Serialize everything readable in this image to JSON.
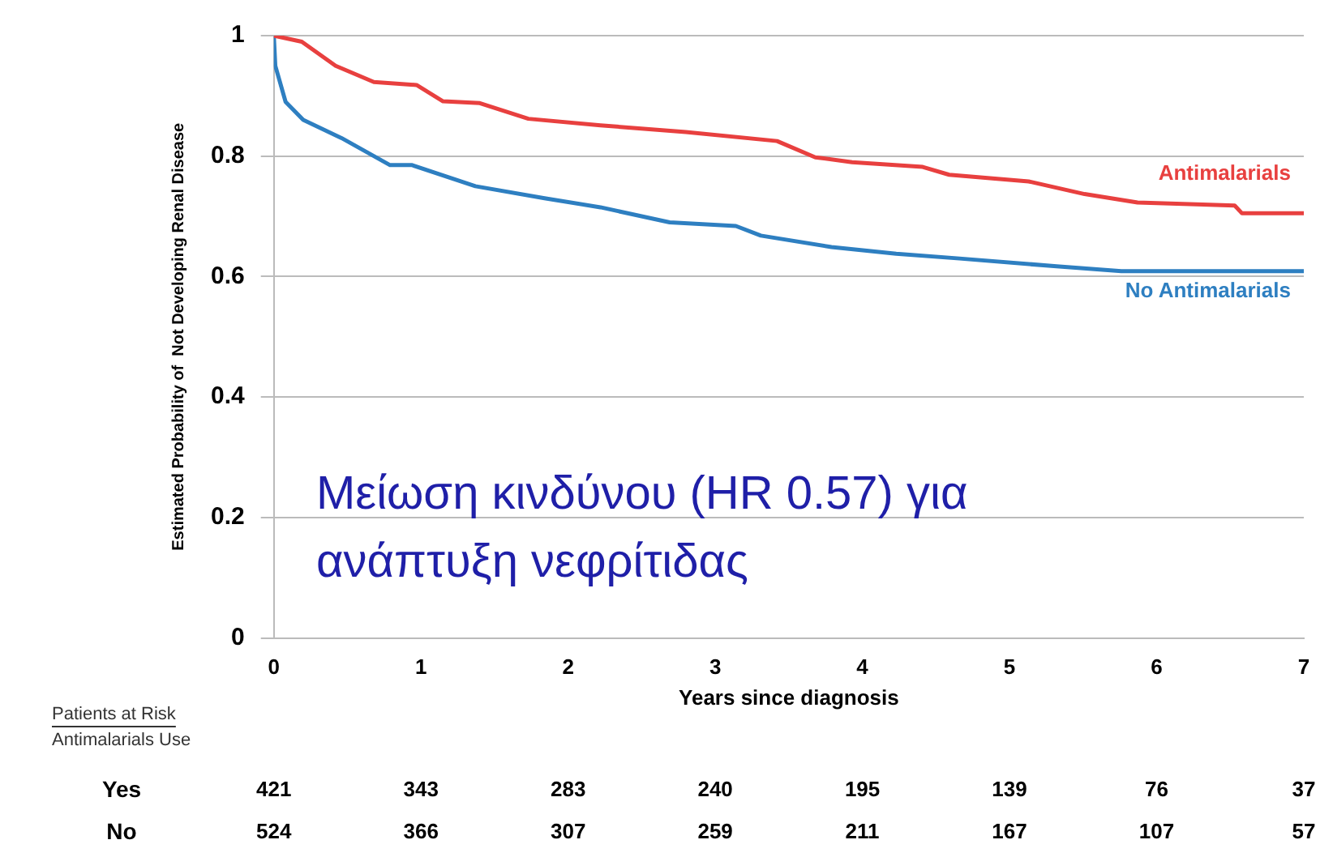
{
  "chart_data": {
    "type": "line",
    "xlabel": "Years since diagnosis",
    "ylabel": "Estimated Probability of  Not Developing Renal Disease",
    "xlim": [
      0,
      7
    ],
    "xticks": [
      0,
      1,
      2,
      3,
      4,
      5,
      6,
      7
    ],
    "ylim": [
      0,
      1
    ],
    "yticks": [
      0,
      0.2,
      0.4,
      0.6,
      0.8,
      1
    ],
    "grid": "y",
    "legend": false,
    "marker": "none",
    "series": [
      {
        "name": "Antimalarials",
        "color": "#e8403f",
        "x": [
          0,
          0.19,
          0.42,
          0.68,
          0.97,
          1.15,
          1.4,
          1.73,
          2.22,
          2.8,
          3.42,
          3.68,
          3.93,
          4.41,
          4.59,
          5.13,
          5.51,
          5.87,
          6.53,
          6.58,
          7
        ],
        "values": [
          1.0,
          0.99,
          0.95,
          0.923,
          0.918,
          0.891,
          0.888,
          0.862,
          0.851,
          0.84,
          0.825,
          0.798,
          0.79,
          0.782,
          0.769,
          0.758,
          0.737,
          0.723,
          0.718,
          0.705,
          0.705
        ]
      },
      {
        "name": "No Antimalarials",
        "color": "#2e7fc1",
        "x": [
          0,
          0.01,
          0.08,
          0.2,
          0.46,
          0.79,
          0.94,
          1.37,
          1.84,
          2.22,
          2.69,
          3.14,
          3.31,
          3.79,
          4.23,
          4.66,
          5.32,
          5.76,
          7
        ],
        "values": [
          1.0,
          0.95,
          0.89,
          0.86,
          0.83,
          0.785,
          0.785,
          0.75,
          0.73,
          0.715,
          0.69,
          0.684,
          0.668,
          0.649,
          0.638,
          0.63,
          0.617,
          0.609,
          0.609
        ]
      }
    ],
    "annotations": [
      "Μείωση κινδύνου (HR 0.57) για ανάπτυξη νεφρίτιδας",
      "Patients at Risk",
      "Antimalarials Use",
      "Yes",
      "421",
      "343",
      "283",
      "240",
      "195",
      "139",
      "76",
      "37",
      "No",
      "524",
      "366",
      "307",
      "259",
      "211",
      "167",
      "107",
      "57"
    ]
  }
}
